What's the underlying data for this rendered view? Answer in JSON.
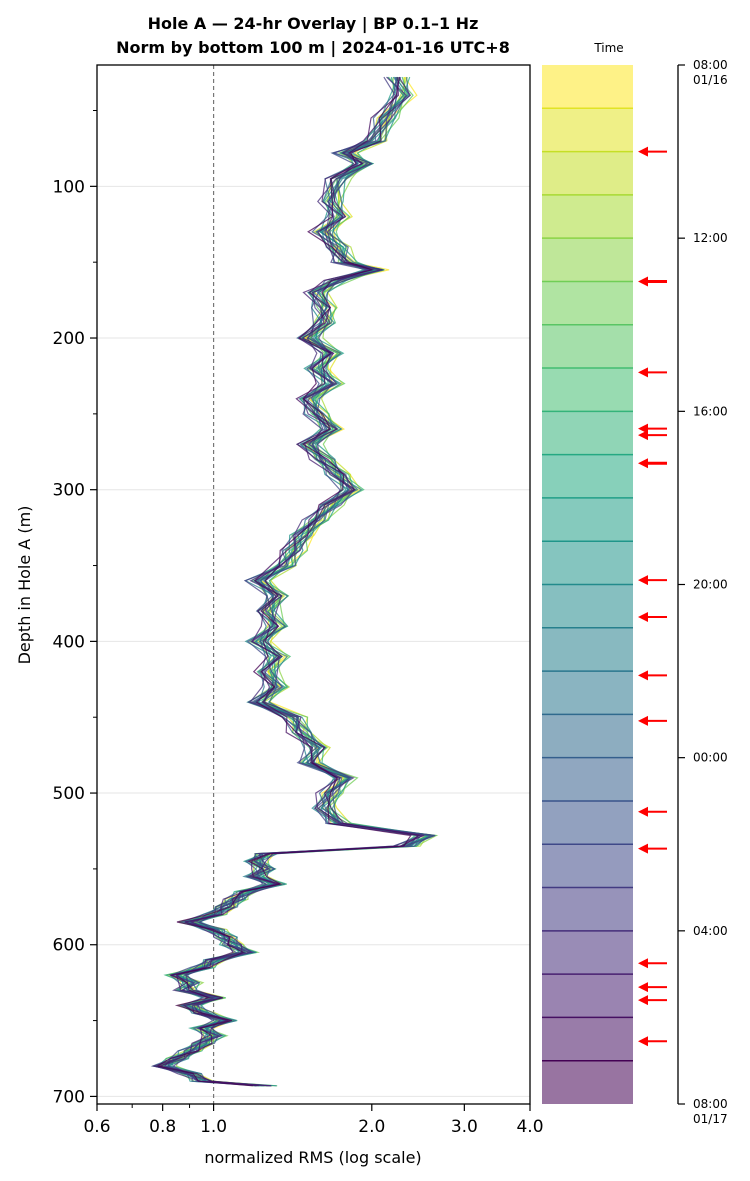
{
  "chart_data": {
    "type": "line",
    "title_line1": "Hole A — 24-hr Overlay  |  BP 0.1–1 Hz",
    "title_line2": "Norm by bottom 100 m  |  2024-01-16 UTC+8",
    "xlabel": "normalized RMS  (log scale)",
    "ylabel": "Depth in Hole A (m)",
    "x_scale": "log",
    "xlim": [
      0.6,
      4.0
    ],
    "ylim": [
      705,
      20
    ],
    "x_ticks": [
      {
        "value": 0.6,
        "label": "0.6"
      },
      {
        "value": 0.8,
        "label": "0.8"
      },
      {
        "value": 1.0,
        "label": "1.0"
      },
      {
        "value": 2.0,
        "label": "2.0"
      },
      {
        "value": 3.0,
        "label": "3.0"
      },
      {
        "value": 4.0,
        "label": "4.0"
      }
    ],
    "y_ticks": [
      {
        "value": 100,
        "label": "100"
      },
      {
        "value": 200,
        "label": "200"
      },
      {
        "value": 300,
        "label": "300"
      },
      {
        "value": 400,
        "label": "400"
      },
      {
        "value": 500,
        "label": "500"
      },
      {
        "value": 600,
        "label": "600"
      },
      {
        "value": 700,
        "label": "700"
      }
    ],
    "reference_line_x": 1.0,
    "grid": "horizontal",
    "profile": {
      "depth": [
        28,
        40,
        55,
        70,
        78,
        85,
        95,
        110,
        120,
        130,
        140,
        150,
        155,
        162,
        170,
        180,
        190,
        200,
        210,
        220,
        230,
        240,
        250,
        260,
        270,
        280,
        290,
        300,
        310,
        320,
        330,
        340,
        350,
        360,
        370,
        380,
        390,
        400,
        410,
        420,
        430,
        440,
        450,
        460,
        470,
        480,
        490,
        500,
        510,
        520,
        528,
        535,
        540,
        545,
        550,
        555,
        560,
        565,
        570,
        575,
        580,
        585,
        590,
        595,
        600,
        605,
        610,
        615,
        620,
        625,
        630,
        635,
        640,
        645,
        650,
        655,
        660,
        665,
        670,
        675,
        680,
        685,
        690,
        693
      ],
      "rms": [
        2.2,
        2.25,
        2.1,
        2.0,
        1.75,
        1.9,
        1.7,
        1.65,
        1.7,
        1.6,
        1.7,
        1.75,
        2.0,
        1.7,
        1.55,
        1.6,
        1.6,
        1.5,
        1.65,
        1.55,
        1.65,
        1.5,
        1.55,
        1.65,
        1.5,
        1.6,
        1.7,
        1.8,
        1.65,
        1.55,
        1.45,
        1.4,
        1.35,
        1.2,
        1.3,
        1.25,
        1.3,
        1.2,
        1.3,
        1.25,
        1.3,
        1.2,
        1.4,
        1.45,
        1.55,
        1.5,
        1.75,
        1.65,
        1.6,
        1.7,
        2.5,
        2.3,
        1.25,
        1.2,
        1.25,
        1.2,
        1.3,
        1.15,
        1.1,
        1.05,
        1.0,
        0.9,
        1.0,
        1.05,
        1.08,
        1.15,
        1.0,
        0.95,
        0.85,
        0.9,
        0.88,
        1.0,
        0.9,
        0.95,
        1.05,
        0.95,
        1.0,
        0.95,
        0.9,
        0.85,
        0.8,
        0.9,
        0.95,
        1.25
      ]
    },
    "series_count": 24,
    "series_start_time": "08:00",
    "series_step_hours": 1,
    "colorbar": {
      "label": "Time",
      "tick_labels": [
        {
          "hour": 0,
          "line1": "08:00",
          "line2": "01/16"
        },
        {
          "hour": 4,
          "line1": "12:00",
          "line2": ""
        },
        {
          "hour": 8,
          "line1": "16:00",
          "line2": ""
        },
        {
          "hour": 12,
          "line1": "20:00",
          "line2": ""
        },
        {
          "hour": 16,
          "line1": "00:00",
          "line2": ""
        },
        {
          "hour": 20,
          "line1": "04:00",
          "line2": ""
        },
        {
          "hour": 24,
          "line1": "08:00",
          "line2": "01/17"
        }
      ],
      "arrow_hours": [
        2.0,
        5.0,
        7.1,
        8.4,
        8.55,
        9.2,
        11.9,
        12.75,
        14.1,
        15.15,
        17.25,
        18.1,
        20.75,
        21.3,
        21.6,
        22.55
      ],
      "bold_arrow_hours": [
        5.0,
        9.2
      ],
      "arrow_color": "#ff0000"
    }
  }
}
